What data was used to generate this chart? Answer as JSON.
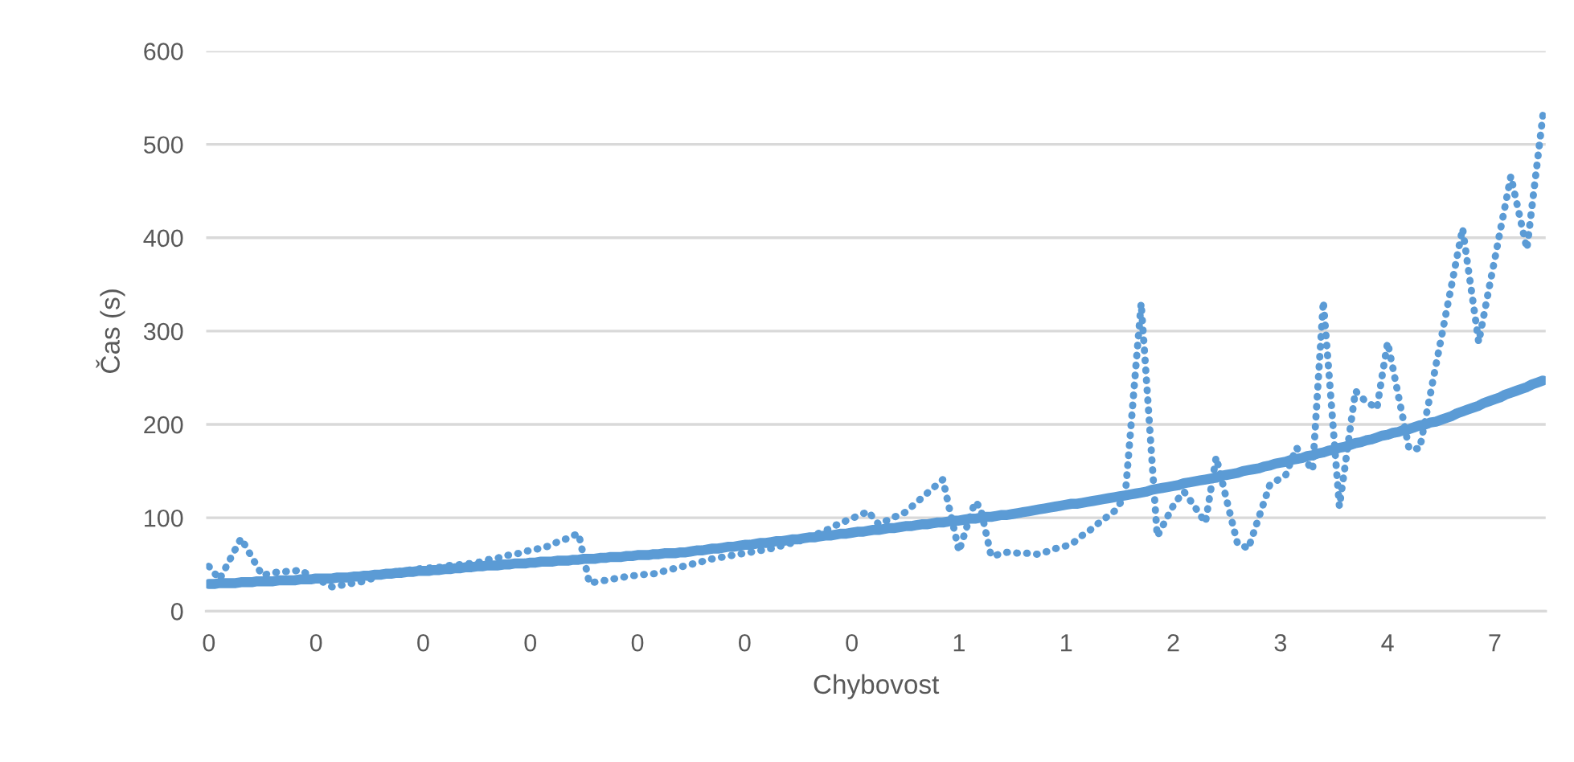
{
  "chart_data": {
    "type": "line",
    "xlabel": "Chybovost",
    "ylabel": "Čas (s)",
    "categories": [
      "0",
      null,
      null,
      null,
      null,
      null,
      null,
      null,
      null,
      null,
      null,
      null,
      null,
      null,
      null,
      null,
      null,
      null,
      null,
      null,
      "0",
      null,
      null,
      null,
      null,
      null,
      null,
      null,
      null,
      null,
      null,
      null,
      null,
      null,
      null,
      null,
      null,
      null,
      null,
      null,
      "0",
      null,
      null,
      null,
      null,
      null,
      null,
      null,
      null,
      null,
      null,
      null,
      null,
      null,
      null,
      null,
      null,
      null,
      null,
      null,
      "0",
      null,
      null,
      null,
      null,
      null,
      null,
      null,
      null,
      null,
      null,
      null,
      null,
      null,
      null,
      null,
      null,
      null,
      null,
      null,
      "0",
      null,
      null,
      null,
      null,
      null,
      null,
      null,
      null,
      null,
      null,
      null,
      null,
      null,
      null,
      null,
      null,
      null,
      null,
      null,
      "0",
      null,
      null,
      null,
      null,
      null,
      null,
      null,
      null,
      null,
      null,
      null,
      null,
      null,
      null,
      null,
      null,
      null,
      null,
      null,
      "0",
      null,
      null,
      null,
      null,
      null,
      null,
      null,
      null,
      null,
      null,
      null,
      null,
      null,
      null,
      null,
      null,
      null,
      null,
      null,
      "1",
      null,
      null,
      null,
      null,
      null,
      null,
      null,
      null,
      null,
      null,
      null,
      null,
      null,
      null,
      null,
      null,
      null,
      null,
      null,
      "1",
      null,
      null,
      null,
      null,
      null,
      null,
      null,
      null,
      null,
      null,
      null,
      null,
      null,
      null,
      null,
      null,
      null,
      null,
      null,
      "2",
      null,
      null,
      null,
      null,
      null,
      null,
      null,
      null,
      null,
      null,
      null,
      null,
      null,
      null,
      null,
      null,
      null,
      null,
      null,
      "3",
      null,
      null,
      null,
      null,
      null,
      null,
      null,
      null,
      null,
      null,
      null,
      null,
      null,
      null,
      null,
      null,
      null,
      null,
      null,
      "4",
      null,
      null,
      null,
      null,
      null,
      null,
      null,
      null,
      null,
      null,
      null,
      null,
      null,
      null,
      null,
      null,
      null,
      null,
      null,
      "7",
      null,
      null,
      null,
      null,
      null,
      null,
      null,
      null,
      null
    ],
    "ylim": [
      0,
      600
    ],
    "yticks": [
      0,
      100,
      200,
      300,
      400,
      500,
      600
    ],
    "grid": "y",
    "legend": false,
    "series": [
      {
        "line_style": "dotted",
        "color": "#5b9bd5",
        "values": [
          48,
          41,
          34,
          45,
          56,
          67,
          78,
          68,
          58,
          48,
          38,
          40,
          41,
          42,
          42,
          43,
          43,
          44,
          41,
          38,
          35,
          32,
          29,
          26,
          27,
          28,
          29,
          30,
          31,
          32,
          34,
          36,
          38,
          39,
          41,
          42,
          43,
          44,
          44,
          45,
          46,
          46,
          47,
          47,
          48,
          49,
          49,
          50,
          51,
          51,
          52,
          53,
          55,
          56,
          57,
          59,
          60,
          61,
          62,
          64,
          65,
          66,
          68,
          69,
          71,
          74,
          76,
          78,
          81,
          83,
          57,
          30,
          31,
          32,
          33,
          34,
          35,
          36,
          37,
          38,
          38,
          39,
          40,
          40,
          41,
          43,
          44,
          46,
          47,
          49,
          50,
          52,
          53,
          55,
          56,
          57,
          58,
          59,
          60,
          61,
          62,
          63,
          64,
          65,
          66,
          67,
          69,
          70,
          72,
          73,
          75,
          76,
          79,
          81,
          84,
          86,
          89,
          92,
          94,
          97,
          99,
          102,
          104,
          107,
          100,
          93,
          96,
          98,
          101,
          103,
          106,
          111,
          116,
          121,
          126,
          131,
          136,
          141,
          115,
          90,
          64,
          82,
          100,
          117,
          111,
          85,
          59,
          60,
          62,
          63,
          63,
          62,
          62,
          62,
          61,
          61,
          63,
          65,
          67,
          68,
          70,
          72,
          76,
          81,
          85,
          89,
          94,
          98,
          103,
          107,
          115,
          122,
          191,
          261,
          330,
          247,
          163,
          80,
          91,
          102,
          113,
          121,
          128,
          120,
          112,
          103,
          95,
          130,
          165,
          142,
          118,
          95,
          72,
          70,
          67,
          84,
          101,
          118,
          135,
          139,
          142,
          146,
          161,
          175,
          167,
          159,
          151,
          242,
          332,
          259,
          185,
          112,
          153,
          195,
          236,
          230,
          224,
          221,
          217,
          253,
          288,
          260,
          231,
          203,
          174,
          174,
          174,
          204,
          233,
          263,
          292,
          322,
          351,
          381,
          410,
          369,
          329,
          288,
          318,
          348,
          377,
          407,
          436,
          466,
          440,
          414,
          388,
          436,
          484,
          532
        ]
      },
      {
        "line_style": "solid",
        "color": "#5b9bd5",
        "values": [
          29,
          29,
          30,
          30,
          30,
          30,
          31,
          31,
          31,
          32,
          32,
          32,
          32,
          33,
          33,
          33,
          33,
          34,
          34,
          34,
          35,
          35,
          35,
          35,
          36,
          36,
          36,
          37,
          37,
          38,
          38,
          39,
          39,
          40,
          40,
          41,
          41,
          42,
          42,
          43,
          43,
          43,
          44,
          44,
          45,
          45,
          46,
          46,
          47,
          47,
          48,
          48,
          49,
          49,
          49,
          50,
          50,
          51,
          51,
          51,
          52,
          52,
          53,
          53,
          53,
          54,
          54,
          54,
          55,
          55,
          56,
          56,
          56,
          57,
          57,
          58,
          58,
          58,
          59,
          59,
          60,
          60,
          60,
          61,
          61,
          62,
          62,
          62,
          63,
          63,
          64,
          65,
          65,
          66,
          67,
          67,
          68,
          69,
          69,
          70,
          71,
          71,
          72,
          73,
          73,
          74,
          75,
          75,
          76,
          77,
          77,
          78,
          79,
          79,
          80,
          81,
          81,
          82,
          83,
          83,
          84,
          85,
          85,
          86,
          87,
          87,
          88,
          89,
          89,
          90,
          91,
          91,
          92,
          93,
          93,
          94,
          95,
          95,
          96,
          97,
          97,
          98,
          99,
          99,
          100,
          101,
          101,
          102,
          103,
          103,
          104,
          105,
          106,
          107,
          108,
          109,
          110,
          111,
          112,
          113,
          114,
          115,
          115,
          116,
          117,
          118,
          119,
          120,
          121,
          122,
          123,
          124,
          125,
          126,
          127,
          128,
          130,
          131,
          132,
          133,
          134,
          135,
          137,
          138,
          139,
          140,
          141,
          142,
          143,
          145,
          146,
          147,
          148,
          150,
          151,
          152,
          153,
          155,
          156,
          158,
          159,
          160,
          162,
          163,
          164,
          166,
          167,
          169,
          170,
          172,
          173,
          175,
          176,
          178,
          180,
          181,
          183,
          184,
          186,
          188,
          189,
          191,
          192,
          194,
          195,
          197,
          199,
          200,
          202,
          203,
          205,
          207,
          209,
          212,
          214,
          216,
          218,
          220,
          223,
          225,
          227,
          229,
          232,
          234,
          236,
          238,
          240,
          243,
          245,
          247
        ]
      }
    ]
  }
}
